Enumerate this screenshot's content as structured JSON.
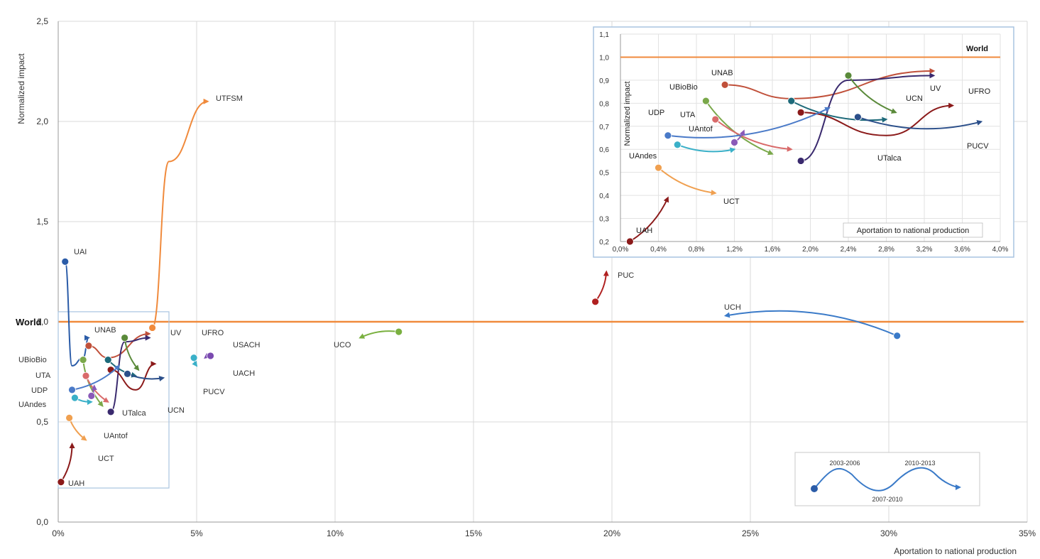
{
  "chart_data": {
    "type": "scatter",
    "xlabel": "Aportation to national production",
    "ylabel": "Normalized impact",
    "xlim": [
      0,
      0.35
    ],
    "ylim": [
      0,
      2.5
    ],
    "x_ticks": [
      "0%",
      "5%",
      "10%",
      "15%",
      "20%",
      "25%",
      "30%",
      "35%"
    ],
    "y_ticks": [
      "0,0",
      "0,5",
      "1,0",
      "1,5",
      "2,0",
      "2,5"
    ],
    "reference_line": {
      "label": "World",
      "y": 1.0,
      "color": "#f08a3c"
    },
    "grid": true,
    "series": [
      {
        "name": "UAH",
        "color": "#8b1a1a",
        "points": [
          [
            0.001,
            0.2
          ],
          [
            0.005,
            0.39
          ]
        ]
      },
      {
        "name": "UAI",
        "color": "#2b5ca8",
        "points": [
          [
            0.0025,
            1.3
          ],
          [
            0.005,
            0.78
          ],
          [
            0.009,
            0.82
          ],
          [
            0.011,
            0.92
          ]
        ]
      },
      {
        "name": "UTFSM",
        "color": "#f08a3c",
        "points": [
          [
            0.034,
            0.97
          ],
          [
            0.04,
            1.8
          ],
          [
            0.054,
            2.1
          ]
        ]
      },
      {
        "name": "UNAB",
        "color": "#c0503a",
        "points": [
          [
            0.011,
            0.88
          ],
          [
            0.018,
            0.82
          ],
          [
            0.033,
            0.94
          ]
        ]
      },
      {
        "name": "UV",
        "color": "#3a2a6e",
        "points": [
          [
            0.019,
            0.55
          ],
          [
            0.024,
            0.9
          ],
          [
            0.033,
            0.92
          ]
        ]
      },
      {
        "name": "UCN",
        "color": "#5a8a3a",
        "points": [
          [
            0.024,
            0.92
          ],
          [
            0.029,
            0.76
          ]
        ]
      },
      {
        "name": "UFRO",
        "color": "#8b1a1a",
        "points": [
          [
            0.019,
            0.76
          ],
          [
            0.028,
            0.66
          ],
          [
            0.035,
            0.79
          ]
        ]
      },
      {
        "name": "UTalca",
        "color": "#1e6a7a",
        "points": [
          [
            0.018,
            0.81
          ],
          [
            0.028,
            0.73
          ]
        ]
      },
      {
        "name": "PUCV",
        "color": "#2b4f8a",
        "points": [
          [
            0.025,
            0.74
          ],
          [
            0.038,
            0.72
          ]
        ]
      },
      {
        "name": "UBioBio",
        "color": "#7aa84a",
        "points": [
          [
            0.009,
            0.81
          ],
          [
            0.016,
            0.58
          ]
        ]
      },
      {
        "name": "UTA",
        "color": "#d96a6a",
        "points": [
          [
            0.01,
            0.73
          ],
          [
            0.018,
            0.6
          ]
        ]
      },
      {
        "name": "UDP",
        "color": "#4a7ac8",
        "points": [
          [
            0.005,
            0.66
          ],
          [
            0.022,
            0.78
          ]
        ]
      },
      {
        "name": "UAntof",
        "color": "#8a5ab8",
        "points": [
          [
            0.012,
            0.63
          ],
          [
            0.013,
            0.68
          ]
        ]
      },
      {
        "name": "UAndes",
        "color": "#f0a050",
        "points": [
          [
            0.004,
            0.52
          ],
          [
            0.01,
            0.41
          ]
        ]
      },
      {
        "name": "UCT",
        "color": "#3ab0c8",
        "points": [
          [
            0.006,
            0.62
          ],
          [
            0.012,
            0.6
          ]
        ]
      },
      {
        "name": "PUC",
        "color": "#b02020",
        "points": [
          [
            0.194,
            1.1
          ],
          [
            0.198,
            1.25
          ]
        ]
      },
      {
        "name": "UCH",
        "color": "#3a7ac8",
        "points": [
          [
            0.303,
            0.93
          ],
          [
            0.241,
            1.03
          ]
        ]
      },
      {
        "name": "UCO",
        "color": "#7ab040",
        "points": [
          [
            0.123,
            0.95
          ],
          [
            0.109,
            0.92
          ]
        ]
      },
      {
        "name": "USACH",
        "color": "#7a4ab0",
        "points": [
          [
            0.055,
            0.83
          ],
          [
            0.053,
            0.82
          ]
        ]
      },
      {
        "name": "UACH",
        "color": "#3ab0c8",
        "points": [
          [
            0.049,
            0.82
          ],
          [
            0.05,
            0.78
          ]
        ]
      }
    ],
    "inset": {
      "xlabel": "Aportation to national production",
      "ylabel": "Normalized impact",
      "xlim": [
        0,
        0.04
      ],
      "ylim": [
        0.2,
        1.1
      ],
      "x_ticks": [
        "0,0%",
        "0,4%",
        "0,8%",
        "1,2%",
        "1,6%",
        "2,0%",
        "2,4%",
        "2,8%",
        "3,2%",
        "3,6%",
        "4,0%"
      ],
      "y_ticks": [
        "0,2",
        "0,3",
        "0,4",
        "0,5",
        "0,6",
        "0,7",
        "0,8",
        "0,9",
        "1,0",
        "1,1"
      ],
      "reference_label": "World"
    },
    "legend": {
      "periods": [
        "2003-2006",
        "2007-2010",
        "2010-2013"
      ]
    }
  }
}
